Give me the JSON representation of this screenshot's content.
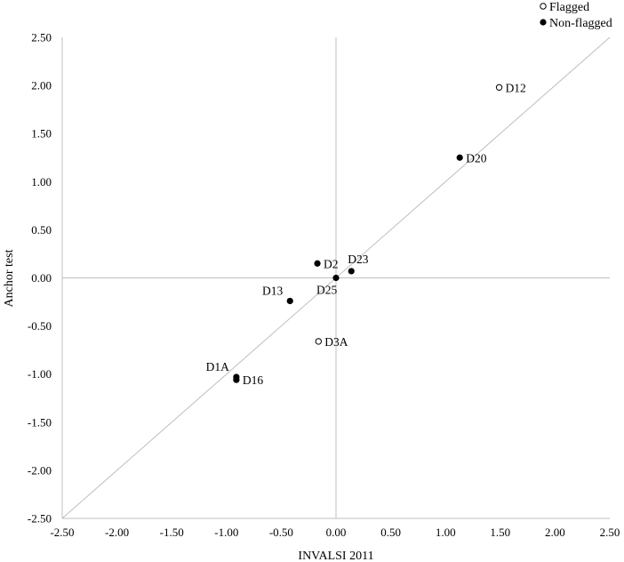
{
  "chart_data": {
    "type": "scatter",
    "xlabel": "INVALSI 2011",
    "ylabel": "Anchor test",
    "xlim": [
      -2.5,
      2.5
    ],
    "ylim": [
      -2.5,
      2.5
    ],
    "x_ticks": [
      "-2.50",
      "-2.00",
      "-1.50",
      "-1.00",
      "-0.50",
      "0.00",
      "0.50",
      "1.00",
      "1.50",
      "2.00",
      "2.50"
    ],
    "y_ticks": [
      "2.50",
      "2.00",
      "1.50",
      "1.00",
      "0.50",
      "0.00",
      "-0.50",
      "-1.00",
      "-1.50",
      "-2.00",
      "-2.50"
    ],
    "reference_line": "identity",
    "legend_position": "top-right",
    "series": [
      {
        "name": "Flagged",
        "marker": "open-circle",
        "points": [
          {
            "label": "D12",
            "x": 1.49,
            "y": 1.98,
            "label_side": "right"
          },
          {
            "label": "D3A",
            "x": -0.16,
            "y": -0.66,
            "label_side": "right"
          }
        ]
      },
      {
        "name": "Non-flagged",
        "marker": "filled-circle",
        "points": [
          {
            "label": "D20",
            "x": 1.13,
            "y": 1.25,
            "label_side": "right"
          },
          {
            "label": "D2",
            "x": -0.17,
            "y": 0.15,
            "label_side": "right"
          },
          {
            "label": "D23",
            "x": 0.14,
            "y": 0.07,
            "label_side": "above-right"
          },
          {
            "label": "D25",
            "x": 0.0,
            "y": 0.0,
            "label_side": "below-left"
          },
          {
            "label": "D13",
            "x": -0.42,
            "y": -0.24,
            "label_side": "above-left"
          },
          {
            "label": "D1A",
            "x": -0.91,
            "y": -1.03,
            "label_side": "above-left"
          },
          {
            "label": "D16",
            "x": -0.91,
            "y": -1.06,
            "label_side": "right"
          }
        ]
      }
    ],
    "colors": {
      "axis": "#bfbfbf",
      "reference_line": "#bfbfbf",
      "marker": "#000000"
    }
  }
}
